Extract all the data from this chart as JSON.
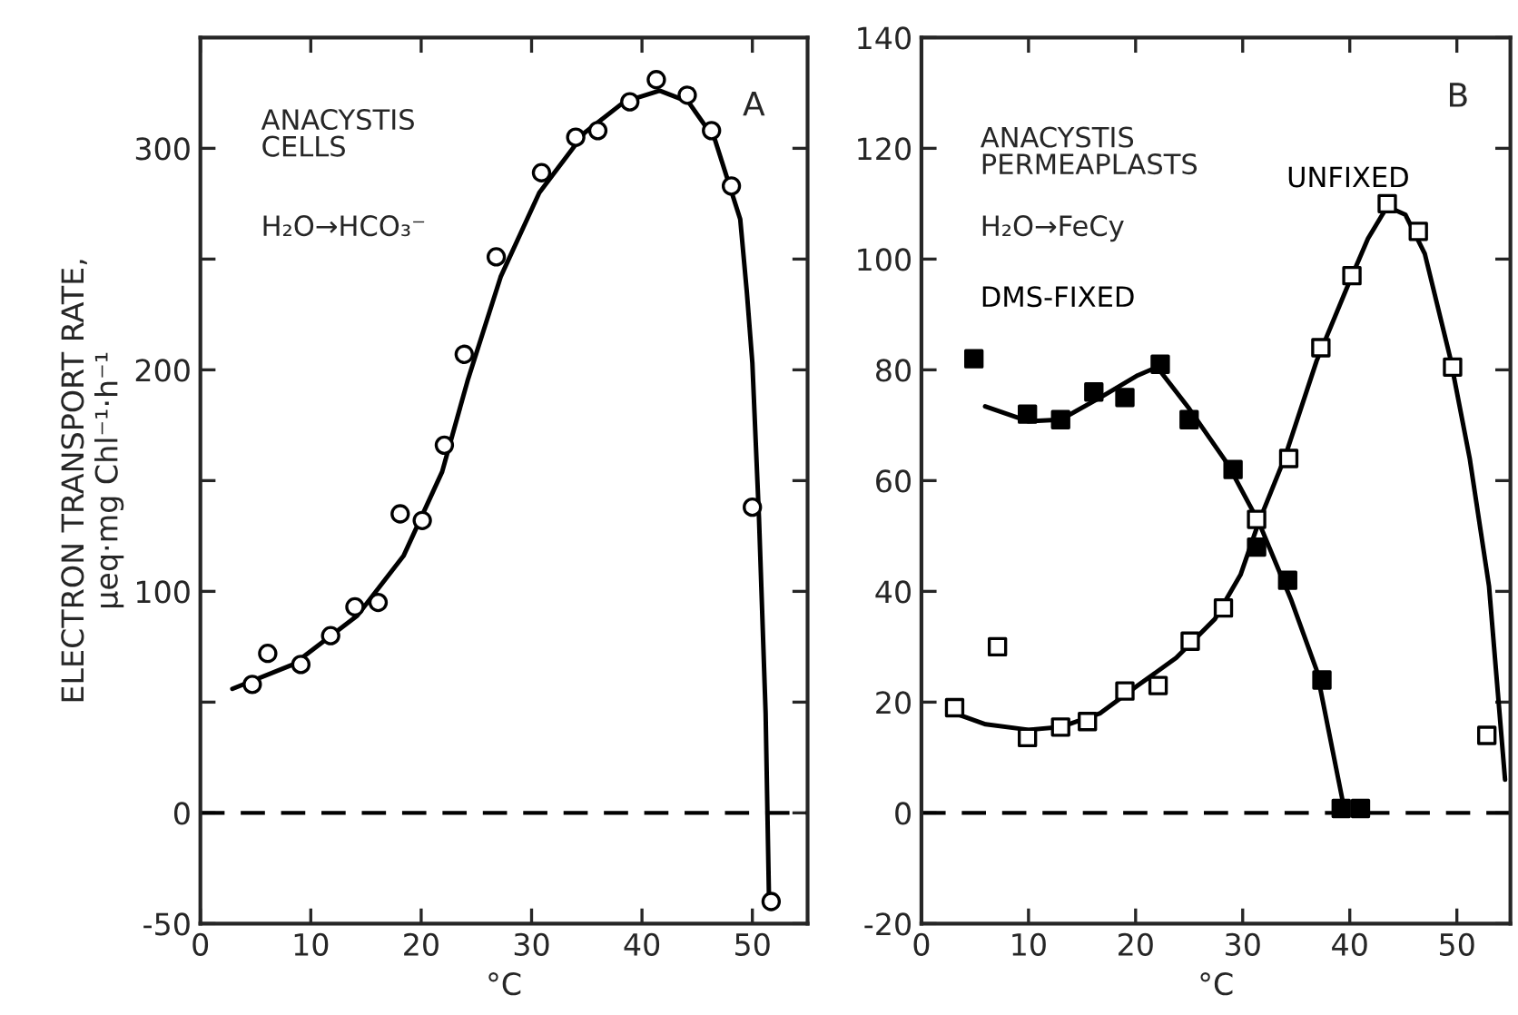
{
  "chart_data": [
    {
      "type": "scatter",
      "xlabel": "°C",
      "ylabel": "ELECTRON TRANSPORT RATE,\nμeq·mg Chl⁻¹·h⁻¹",
      "xlim": [
        0,
        55
      ],
      "xticks": [
        0,
        10,
        20,
        30,
        40,
        50
      ],
      "ylim": [
        -50,
        350
      ],
      "yticks": [
        -50,
        0,
        {
          "value": 50,
          "label": null
        },
        100,
        {
          "value": 150,
          "label": null
        },
        200,
        {
          "value": 250,
          "label": null
        },
        300
      ],
      "marker": "circle",
      "grid": false,
      "legend": false,
      "ref_lines": [
        {
          "axis": "y",
          "value": 0,
          "line_style": "dashed",
          "color": "#000000"
        }
      ],
      "annotations": [
        "A",
        "ANACYSTIS\nCELLS",
        "H₂O→HCO₃⁻"
      ],
      "series": [
        {
          "color": "#ffffff",
          "x": [
            4.7,
            6.1,
            9.1,
            11.8,
            14.0,
            16.1,
            18.1,
            20.1,
            22.1,
            23.9,
            26.8,
            30.9,
            34.0,
            36.0,
            38.9,
            41.3,
            44.1,
            46.3,
            48.1,
            50.0,
            51.7
          ],
          "values": [
            58,
            72,
            67,
            80,
            93,
            95,
            135,
            132,
            166,
            207,
            251,
            289,
            305,
            308,
            321,
            331,
            324,
            308,
            283,
            138,
            -40
          ]
        },
        {
          "type": "line",
          "color": "#000000",
          "marker": "none",
          "x": [
            2.9,
            8.4,
            14.2,
            18.4,
            21.9,
            24.2,
            27.2,
            30.7,
            34.8,
            38.4,
            41.6,
            44.2,
            46.6,
            48.9,
            49.5,
            50.0,
            50.6,
            51.2,
            51.5
          ],
          "values": [
            56,
            67,
            89,
            116,
            154,
            195,
            242,
            280,
            307,
            321,
            326,
            321,
            304,
            268,
            235,
            203,
            133,
            45,
            -37
          ]
        }
      ]
    },
    {
      "type": "scatter",
      "xlabel": "°C",
      "xlim": [
        0,
        55
      ],
      "xticks": [
        0,
        10,
        20,
        30,
        40,
        50
      ],
      "ylim": [
        -20,
        140
      ],
      "yticks": [
        -20,
        0,
        20,
        40,
        60,
        80,
        100,
        120,
        140
      ],
      "marker": "square",
      "grid": false,
      "legend": false,
      "ref_lines": [
        {
          "axis": "y",
          "value": 0,
          "line_style": "dashed",
          "color": "#000000"
        }
      ],
      "annotations": [
        "B",
        "ANACYSTIS\nPERMEAPLASTS",
        "H₂O→FeCy"
      ],
      "series": [
        {
          "name": "UNFIXED",
          "color": "#ffffff",
          "x": [
            3.1,
            7.1,
            9.9,
            13.0,
            15.5,
            19.0,
            22.1,
            25.1,
            28.2,
            31.3,
            34.3,
            37.3,
            40.2,
            43.5,
            46.4,
            49.6,
            52.8
          ],
          "values": [
            19,
            30,
            13.6,
            15.5,
            16.5,
            22,
            23,
            31,
            37,
            53,
            64,
            84,
            97,
            110,
            105,
            80.5,
            14
          ]
        },
        {
          "name": "DMS-FIXED",
          "color": "#000000",
          "x": [
            4.9,
            9.9,
            13.0,
            16.1,
            19.0,
            22.3,
            25.0,
            29.1,
            31.3,
            34.2,
            37.4,
            39.2,
            41.0
          ],
          "values": [
            82,
            72,
            71,
            76,
            75,
            81,
            71,
            62,
            48,
            42,
            24,
            0.8,
            0.8
          ]
        },
        {
          "type": "line",
          "color": "#000000",
          "marker": "none",
          "x": [
            3.1,
            6,
            10,
            13,
            16.7,
            20.2,
            23.8,
            27.4,
            29.8,
            31.5,
            33.9,
            36.9,
            39.9,
            41.7,
            43.5,
            45.2,
            47,
            49.4,
            51.2,
            53,
            54.5
          ],
          "values": [
            18,
            16,
            15,
            15.5,
            18,
            23,
            28,
            35,
            43,
            52.5,
            64,
            81.6,
            95.6,
            103.7,
            109.5,
            108,
            101,
            82,
            64,
            41,
            6
          ]
        },
        {
          "type": "line",
          "color": "#000000",
          "marker": "none",
          "x": [
            5.95,
            10,
            13,
            16.7,
            20.2,
            22,
            25,
            28.6,
            31.5,
            34.5,
            36.9,
            39.3
          ],
          "values": [
            73.4,
            70.7,
            71,
            75,
            79,
            80.5,
            73,
            63,
            52.5,
            38.6,
            25.8,
            2.5
          ]
        }
      ]
    }
  ]
}
